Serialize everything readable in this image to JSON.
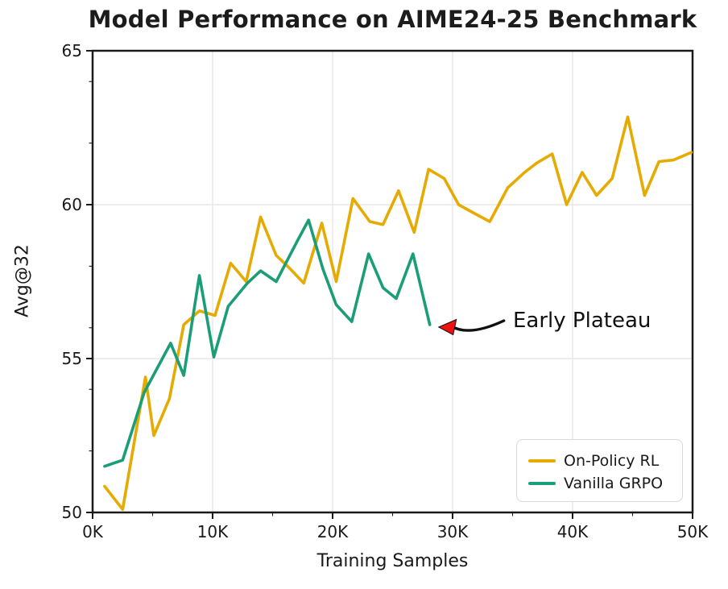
{
  "chart_data": {
    "type": "line",
    "title": "Model Performance on AIME24-25 Benchmark",
    "xlabel": "Training Samples",
    "ylabel": "Avg@32",
    "xlim": [
      0,
      50
    ],
    "ylim": [
      50,
      65
    ],
    "grid": {
      "x_values": [
        10,
        20,
        30,
        40
      ],
      "y_values": [
        55,
        60
      ]
    },
    "x_ticks": [
      {
        "value": 0,
        "label": "0K"
      },
      {
        "value": 10,
        "label": "10K"
      },
      {
        "value": 20,
        "label": "20K"
      },
      {
        "value": 30,
        "label": "30K"
      },
      {
        "value": 40,
        "label": "40K"
      },
      {
        "value": 50,
        "label": "50K"
      }
    ],
    "y_ticks": [
      {
        "value": 50,
        "label": "50"
      },
      {
        "value": 55,
        "label": "55"
      },
      {
        "value": 60,
        "label": "60"
      },
      {
        "value": 65,
        "label": "65"
      }
    ],
    "x_minor_ticks": [
      5,
      15,
      25,
      35,
      45
    ],
    "y_minor_ticks": [
      52,
      54,
      56,
      58,
      62,
      64
    ],
    "colors": {
      "grid": "#e7e7e7",
      "axis": "#1a1a1a",
      "text": "#1a1a1a"
    },
    "legend_position": "lower right",
    "series": [
      {
        "name": "On-Policy RL",
        "color": "#E6AB02",
        "x_unit": "thousands of training samples",
        "points": [
          [
            1.0,
            50.85
          ],
          [
            2.5,
            50.1
          ],
          [
            4.4,
            54.4
          ],
          [
            5.1,
            52.5
          ],
          [
            6.4,
            53.7
          ],
          [
            7.6,
            56.1
          ],
          [
            8.9,
            56.55
          ],
          [
            10.2,
            56.4
          ],
          [
            11.5,
            58.1
          ],
          [
            12.8,
            57.5
          ],
          [
            14.0,
            59.6
          ],
          [
            15.3,
            58.35
          ],
          [
            16.5,
            57.9
          ],
          [
            17.6,
            57.45
          ],
          [
            19.1,
            59.4
          ],
          [
            20.3,
            57.5
          ],
          [
            21.7,
            60.2
          ],
          [
            23.1,
            59.45
          ],
          [
            24.2,
            59.35
          ],
          [
            25.5,
            60.45
          ],
          [
            26.8,
            59.1
          ],
          [
            28.0,
            61.15
          ],
          [
            29.3,
            60.85
          ],
          [
            30.5,
            60.0
          ],
          [
            31.9,
            59.7
          ],
          [
            33.1,
            59.45
          ],
          [
            34.6,
            60.55
          ],
          [
            36.0,
            61.05
          ],
          [
            37.0,
            61.35
          ],
          [
            38.3,
            61.65
          ],
          [
            39.5,
            60.0
          ],
          [
            40.8,
            61.05
          ],
          [
            42.0,
            60.3
          ],
          [
            43.3,
            60.85
          ],
          [
            44.6,
            62.85
          ],
          [
            46.0,
            60.3
          ],
          [
            47.2,
            61.4
          ],
          [
            48.4,
            61.45
          ],
          [
            49.9,
            61.7
          ]
        ]
      },
      {
        "name": "Vanilla GRPO",
        "color": "#1B9E77",
        "x_unit": "thousands of training samples",
        "points": [
          [
            1.0,
            51.5
          ],
          [
            2.5,
            51.7
          ],
          [
            4.3,
            53.9
          ],
          [
            6.5,
            55.5
          ],
          [
            7.6,
            54.45
          ],
          [
            8.9,
            57.7
          ],
          [
            10.1,
            55.05
          ],
          [
            11.3,
            56.7
          ],
          [
            12.9,
            57.45
          ],
          [
            14.0,
            57.85
          ],
          [
            15.3,
            57.5
          ],
          [
            17.1,
            58.85
          ],
          [
            18.0,
            59.5
          ],
          [
            19.2,
            57.9
          ],
          [
            20.3,
            56.75
          ],
          [
            21.6,
            56.2
          ],
          [
            23.0,
            58.4
          ],
          [
            24.2,
            57.3
          ],
          [
            25.3,
            56.95
          ],
          [
            26.7,
            58.4
          ],
          [
            28.1,
            56.1
          ]
        ]
      }
    ],
    "annotation": {
      "text": "Early Plateau",
      "points_to": [
        28.1,
        56.1
      ],
      "arrow_color": "#111111",
      "arrowhead_color": "#EE1111"
    }
  }
}
